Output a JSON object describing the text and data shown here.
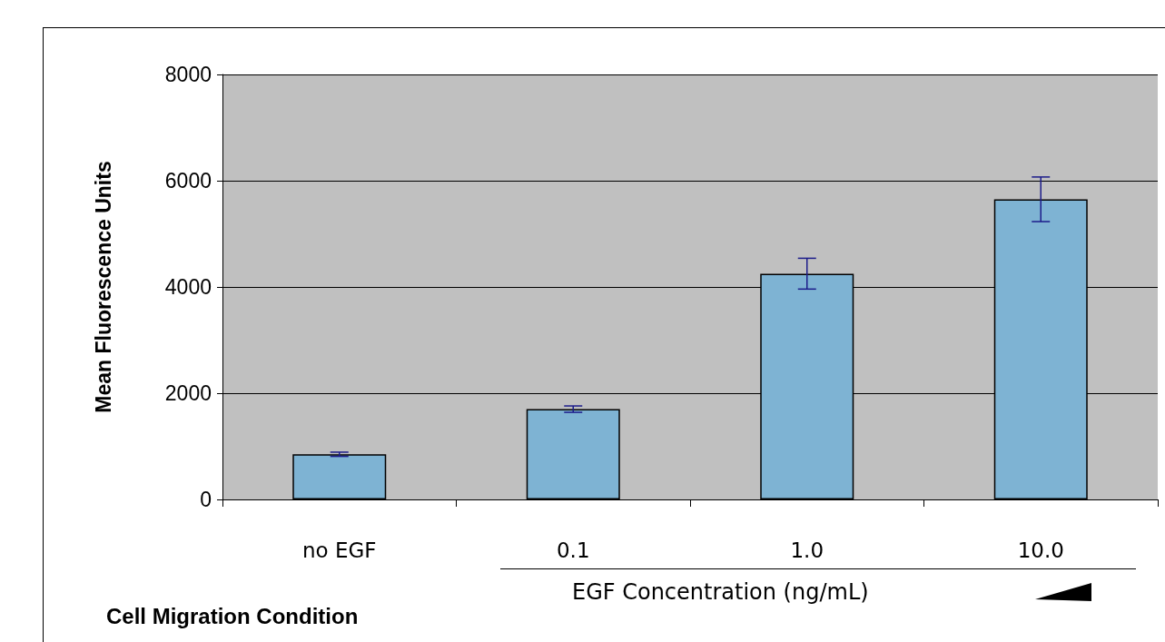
{
  "chart_data": {
    "type": "bar",
    "ylabel": "Mean Fluorescence Units",
    "xlabel": "Cell Migration Condition",
    "categories": [
      "no EGF",
      "0.1",
      "1.0",
      "10.0"
    ],
    "values": [
      850,
      1700,
      4250,
      5650
    ],
    "errors": [
      40,
      60,
      290,
      420
    ],
    "color": "#7eb3d3",
    "ylim": [
      0,
      8000
    ],
    "yticks": [
      0,
      2000,
      4000,
      6000,
      8000
    ],
    "grid": "y",
    "annotations": [
      "EGF Concentration (ng/mL)"
    ]
  }
}
